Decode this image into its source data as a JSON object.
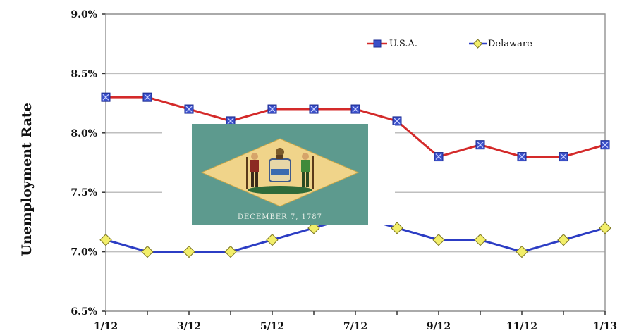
{
  "chart_data": {
    "type": "line",
    "ylabel": "Unemployment Rate",
    "categories": [
      "1/12",
      "2/12",
      "3/12",
      "4/12",
      "5/12",
      "6/12",
      "7/12",
      "8/12",
      "9/12",
      "10/12",
      "11/12",
      "12/12",
      "1/13"
    ],
    "x_tick_labels": [
      "1/12",
      "3/12",
      "5/12",
      "7/12",
      "9/12",
      "11/12",
      "1/13"
    ],
    "y_tick_labels": [
      "6.5%",
      "7.0%",
      "7.5%",
      "8.0%",
      "8.5%",
      "9.0%"
    ],
    "ylim": [
      6.5,
      9.0
    ],
    "grid": true,
    "legend_position": "top-right",
    "series": [
      {
        "name": "U.S.A.",
        "color": "#d42a2a",
        "marker_color": "#3a4fc8",
        "values": [
          8.3,
          8.3,
          8.2,
          8.1,
          8.2,
          8.2,
          8.2,
          8.1,
          7.8,
          7.9,
          7.8,
          7.8,
          7.9
        ]
      },
      {
        "name": "Delaware",
        "color": "#2c3dc4",
        "marker_color": "#f2ee6a",
        "values": [
          7.1,
          7.0,
          7.0,
          7.0,
          7.1,
          7.2,
          7.3,
          7.2,
          7.1,
          7.1,
          7.0,
          7.1,
          7.2
        ]
      }
    ]
  },
  "flag": {
    "field_color": "#5d9a8e",
    "diamond_color": "#f0d48a",
    "date_text": "DECEMBER 7, 1787"
  }
}
